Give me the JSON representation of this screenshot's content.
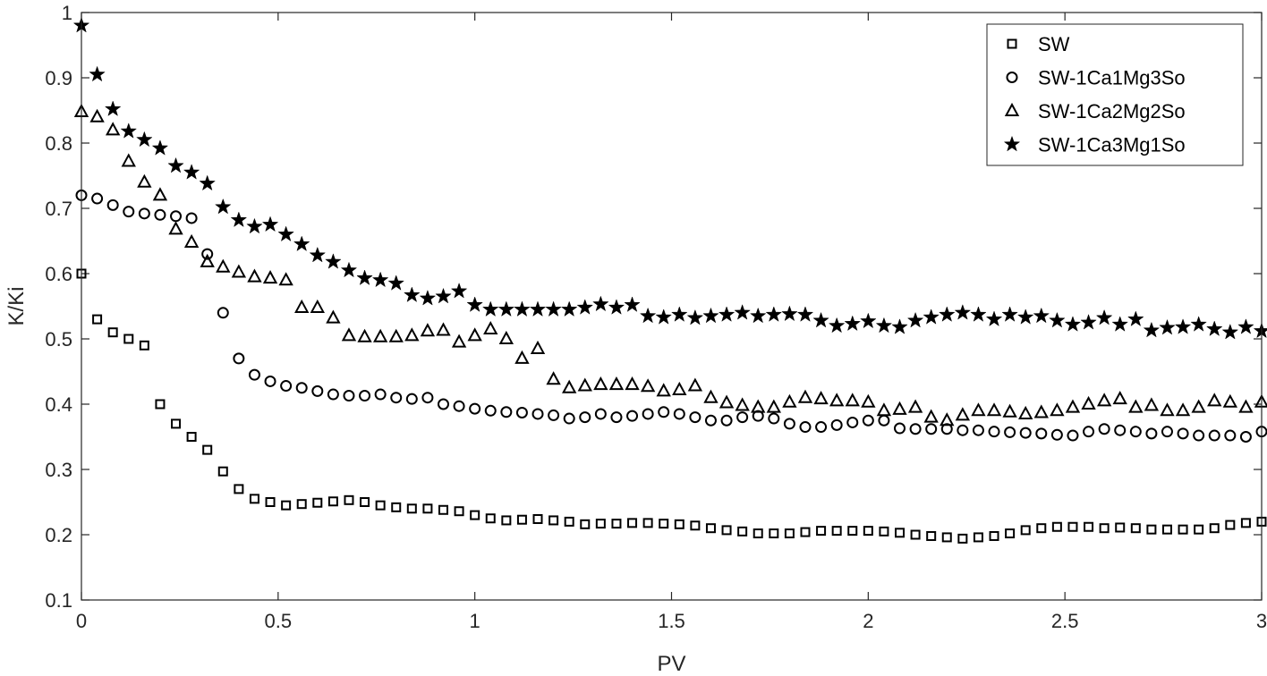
{
  "chart_data": {
    "type": "scatter",
    "xlabel": "PV",
    "ylabel": "K/Ki",
    "xlim": [
      0,
      3
    ],
    "ylim": [
      0.1,
      1
    ],
    "xticks": [
      0,
      0.5,
      1,
      1.5,
      2,
      2.5,
      3
    ],
    "xtick_labels": [
      "0",
      "0.5",
      "1",
      "1.5",
      "2",
      "2.5",
      "3"
    ],
    "yticks": [
      0.1,
      0.2,
      0.3,
      0.4,
      0.5,
      0.6,
      0.7,
      0.8,
      0.9,
      1
    ],
    "ytick_labels": [
      "0.1",
      "0.2",
      "0.3",
      "0.4",
      "0.5",
      "0.6",
      "0.7",
      "0.8",
      "0.9",
      "1"
    ],
    "grid": false,
    "legend_position": "top-right",
    "series": [
      {
        "name": "SW",
        "marker": "square",
        "x": [
          0,
          0.04,
          0.08,
          0.12,
          0.16,
          0.2,
          0.24,
          0.28,
          0.32,
          0.36,
          0.4,
          0.44,
          0.48,
          0.52,
          0.56,
          0.6,
          0.64,
          0.68,
          0.72,
          0.76,
          0.8,
          0.84,
          0.88,
          0.92,
          0.96,
          1.0,
          1.04,
          1.08,
          1.12,
          1.16,
          1.2,
          1.24,
          1.28,
          1.32,
          1.36,
          1.4,
          1.44,
          1.48,
          1.52,
          1.56,
          1.6,
          1.64,
          1.68,
          1.72,
          1.76,
          1.8,
          1.84,
          1.88,
          1.92,
          1.96,
          2.0,
          2.04,
          2.08,
          2.12,
          2.16,
          2.2,
          2.24,
          2.28,
          2.32,
          2.36,
          2.4,
          2.44,
          2.48,
          2.52,
          2.56,
          2.6,
          2.64,
          2.68,
          2.72,
          2.76,
          2.8,
          2.84,
          2.88,
          2.92,
          2.96,
          3.0
        ],
        "y": [
          0.6,
          0.53,
          0.51,
          0.5,
          0.49,
          0.4,
          0.37,
          0.35,
          0.33,
          0.297,
          0.27,
          0.255,
          0.25,
          0.245,
          0.247,
          0.249,
          0.251,
          0.253,
          0.25,
          0.245,
          0.242,
          0.24,
          0.24,
          0.238,
          0.236,
          0.23,
          0.225,
          0.222,
          0.223,
          0.224,
          0.222,
          0.22,
          0.216,
          0.217,
          0.217,
          0.218,
          0.218,
          0.217,
          0.216,
          0.214,
          0.21,
          0.207,
          0.205,
          0.202,
          0.202,
          0.202,
          0.204,
          0.206,
          0.206,
          0.206,
          0.206,
          0.205,
          0.203,
          0.2,
          0.198,
          0.196,
          0.194,
          0.196,
          0.198,
          0.202,
          0.207,
          0.21,
          0.212,
          0.212,
          0.212,
          0.21,
          0.211,
          0.21,
          0.208,
          0.208,
          0.208,
          0.208,
          0.21,
          0.215,
          0.218,
          0.22
        ]
      },
      {
        "name": "SW-1Ca1Mg3So",
        "marker": "circle",
        "x": [
          0,
          0.04,
          0.08,
          0.12,
          0.16,
          0.2,
          0.24,
          0.28,
          0.32,
          0.36,
          0.4,
          0.44,
          0.48,
          0.52,
          0.56,
          0.6,
          0.64,
          0.68,
          0.72,
          0.76,
          0.8,
          0.84,
          0.88,
          0.92,
          0.96,
          1.0,
          1.04,
          1.08,
          1.12,
          1.16,
          1.2,
          1.24,
          1.28,
          1.32,
          1.36,
          1.4,
          1.44,
          1.48,
          1.52,
          1.56,
          1.6,
          1.64,
          1.68,
          1.72,
          1.76,
          1.8,
          1.84,
          1.88,
          1.92,
          1.96,
          2.0,
          2.04,
          2.08,
          2.12,
          2.16,
          2.2,
          2.24,
          2.28,
          2.32,
          2.36,
          2.4,
          2.44,
          2.48,
          2.52,
          2.56,
          2.6,
          2.64,
          2.68,
          2.72,
          2.76,
          2.8,
          2.84,
          2.88,
          2.92,
          2.96,
          3.0
        ],
        "y": [
          0.72,
          0.715,
          0.705,
          0.695,
          0.692,
          0.69,
          0.688,
          0.685,
          0.63,
          0.54,
          0.47,
          0.445,
          0.435,
          0.428,
          0.425,
          0.42,
          0.415,
          0.413,
          0.413,
          0.415,
          0.41,
          0.408,
          0.41,
          0.4,
          0.397,
          0.393,
          0.39,
          0.388,
          0.387,
          0.385,
          0.383,
          0.378,
          0.38,
          0.385,
          0.38,
          0.382,
          0.385,
          0.388,
          0.385,
          0.38,
          0.375,
          0.375,
          0.38,
          0.382,
          0.378,
          0.37,
          0.365,
          0.365,
          0.368,
          0.372,
          0.375,
          0.375,
          0.363,
          0.362,
          0.362,
          0.362,
          0.36,
          0.36,
          0.358,
          0.357,
          0.356,
          0.355,
          0.353,
          0.352,
          0.358,
          0.362,
          0.36,
          0.358,
          0.355,
          0.358,
          0.355,
          0.352,
          0.352,
          0.352,
          0.35,
          0.358
        ]
      },
      {
        "name": "SW-1Ca2Mg2So",
        "marker": "triangle",
        "x": [
          0,
          0.04,
          0.08,
          0.12,
          0.16,
          0.2,
          0.24,
          0.28,
          0.32,
          0.36,
          0.4,
          0.44,
          0.48,
          0.52,
          0.56,
          0.6,
          0.64,
          0.68,
          0.72,
          0.76,
          0.8,
          0.84,
          0.88,
          0.92,
          0.96,
          1.0,
          1.04,
          1.08,
          1.12,
          1.16,
          1.2,
          1.24,
          1.28,
          1.32,
          1.36,
          1.4,
          1.44,
          1.48,
          1.52,
          1.56,
          1.6,
          1.64,
          1.68,
          1.72,
          1.76,
          1.8,
          1.84,
          1.88,
          1.92,
          1.96,
          2.0,
          2.04,
          2.08,
          2.12,
          2.16,
          2.2,
          2.24,
          2.28,
          2.32,
          2.36,
          2.4,
          2.44,
          2.48,
          2.52,
          2.56,
          2.6,
          2.64,
          2.68,
          2.72,
          2.76,
          2.8,
          2.84,
          2.88,
          2.92,
          2.96,
          3.0
        ],
        "y": [
          0.848,
          0.84,
          0.82,
          0.772,
          0.74,
          0.72,
          0.668,
          0.648,
          0.618,
          0.61,
          0.602,
          0.595,
          0.593,
          0.59,
          0.548,
          0.548,
          0.532,
          0.505,
          0.503,
          0.503,
          0.503,
          0.505,
          0.512,
          0.513,
          0.495,
          0.505,
          0.515,
          0.5,
          0.47,
          0.485,
          0.438,
          0.425,
          0.428,
          0.43,
          0.43,
          0.43,
          0.427,
          0.42,
          0.422,
          0.428,
          0.41,
          0.402,
          0.398,
          0.395,
          0.395,
          0.403,
          0.41,
          0.408,
          0.405,
          0.405,
          0.403,
          0.39,
          0.392,
          0.395,
          0.38,
          0.375,
          0.383,
          0.39,
          0.39,
          0.388,
          0.385,
          0.387,
          0.39,
          0.395,
          0.4,
          0.405,
          0.408,
          0.395,
          0.398,
          0.39,
          0.39,
          0.395,
          0.405,
          0.403,
          0.395,
          0.403
        ]
      },
      {
        "name": "SW-1Ca3Mg1So",
        "marker": "star",
        "x": [
          0,
          0.04,
          0.08,
          0.12,
          0.16,
          0.2,
          0.24,
          0.28,
          0.32,
          0.36,
          0.4,
          0.44,
          0.48,
          0.52,
          0.56,
          0.6,
          0.64,
          0.68,
          0.72,
          0.76,
          0.8,
          0.84,
          0.88,
          0.92,
          0.96,
          1.0,
          1.04,
          1.08,
          1.12,
          1.16,
          1.2,
          1.24,
          1.28,
          1.32,
          1.36,
          1.4,
          1.44,
          1.48,
          1.52,
          1.56,
          1.6,
          1.64,
          1.68,
          1.72,
          1.76,
          1.8,
          1.84,
          1.88,
          1.92,
          1.96,
          2.0,
          2.04,
          2.08,
          2.12,
          2.16,
          2.2,
          2.24,
          2.28,
          2.32,
          2.36,
          2.4,
          2.44,
          2.48,
          2.52,
          2.56,
          2.6,
          2.64,
          2.68,
          2.72,
          2.76,
          2.8,
          2.84,
          2.88,
          2.92,
          2.96,
          3.0
        ],
        "y": [
          0.98,
          0.905,
          0.852,
          0.818,
          0.805,
          0.792,
          0.765,
          0.755,
          0.738,
          0.702,
          0.682,
          0.672,
          0.675,
          0.66,
          0.645,
          0.628,
          0.618,
          0.605,
          0.593,
          0.59,
          0.585,
          0.567,
          0.562,
          0.565,
          0.573,
          0.552,
          0.545,
          0.545,
          0.545,
          0.545,
          0.545,
          0.545,
          0.548,
          0.553,
          0.548,
          0.552,
          0.535,
          0.533,
          0.537,
          0.532,
          0.535,
          0.537,
          0.54,
          0.535,
          0.537,
          0.538,
          0.537,
          0.528,
          0.52,
          0.523,
          0.527,
          0.52,
          0.518,
          0.528,
          0.533,
          0.537,
          0.54,
          0.537,
          0.53,
          0.537,
          0.533,
          0.535,
          0.528,
          0.522,
          0.525,
          0.532,
          0.522,
          0.53,
          0.513,
          0.517,
          0.518,
          0.522,
          0.515,
          0.51,
          0.518,
          0.512
        ]
      }
    ]
  }
}
